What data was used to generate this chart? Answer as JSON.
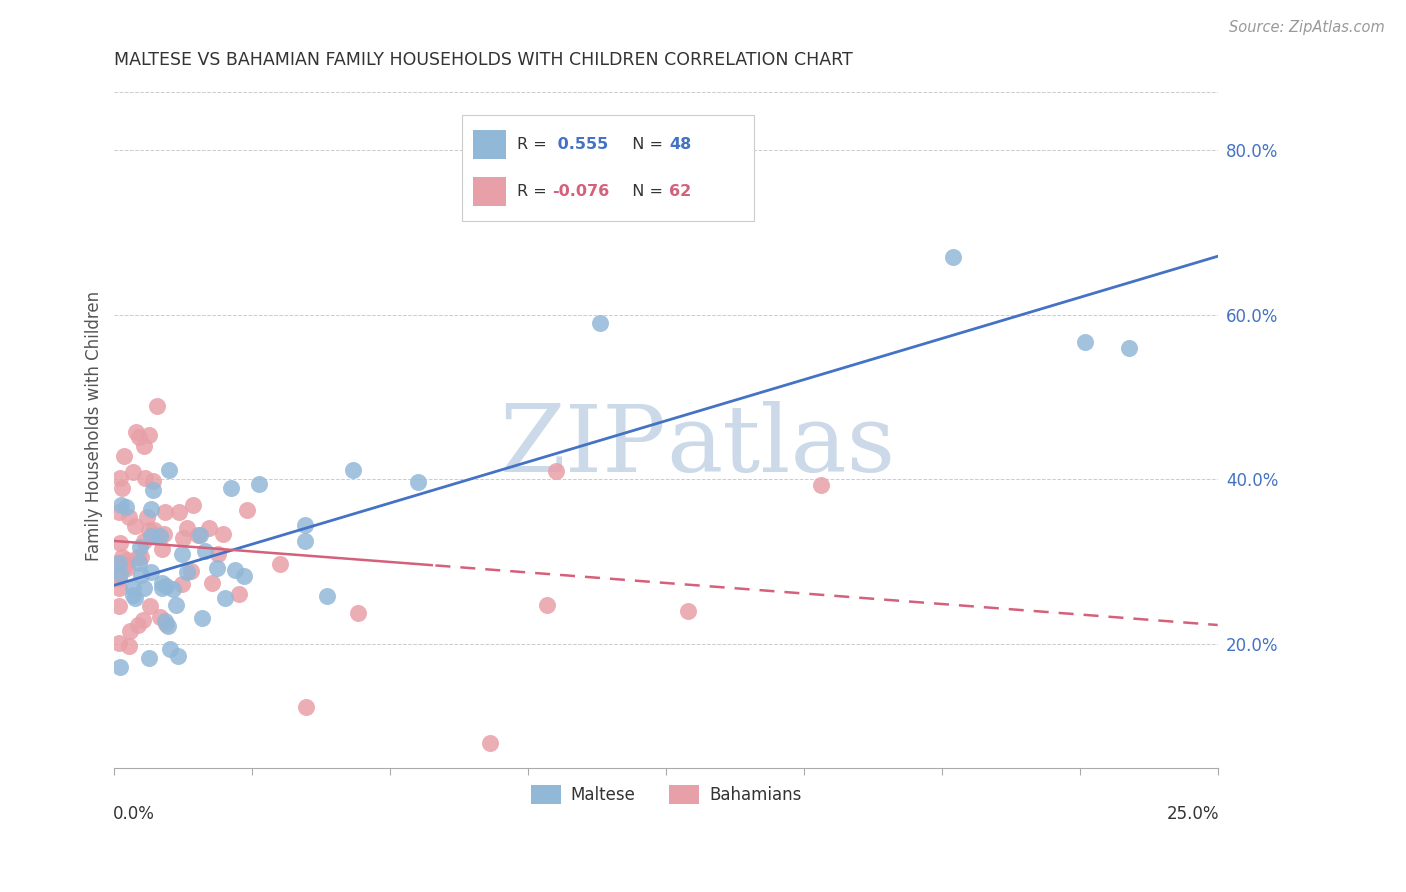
{
  "title": "MALTESE VS BAHAMIAN FAMILY HOUSEHOLDS WITH CHILDREN CORRELATION CHART",
  "source": "Source: ZipAtlas.com",
  "ylabel": "Family Households with Children",
  "yticks": [
    0.2,
    0.4,
    0.6,
    0.8
  ],
  "ytick_labels": [
    "20.0%",
    "40.0%",
    "60.0%",
    "80.0%"
  ],
  "xmin": 0.0,
  "xmax": 0.25,
  "ymin": 0.05,
  "ymax": 0.88,
  "maltese_color": "#92b8d8",
  "bahamian_color": "#e8a0a8",
  "maltese_line_color": "#4472c4",
  "bahamian_line_color": "#d4607a",
  "watermark_color": "#ccd9e8",
  "grid_color": "#cccccc",
  "tick_color": "#aaaaaa",
  "title_color": "#333333",
  "source_color": "#999999",
  "ylabel_color": "#555555",
  "axis_label_color": "#333333",
  "right_tick_color": "#4472c4",
  "legend_r_color": "#222222",
  "legend_val_blue": "#4472c4",
  "legend_val_pink": "#d4607a"
}
